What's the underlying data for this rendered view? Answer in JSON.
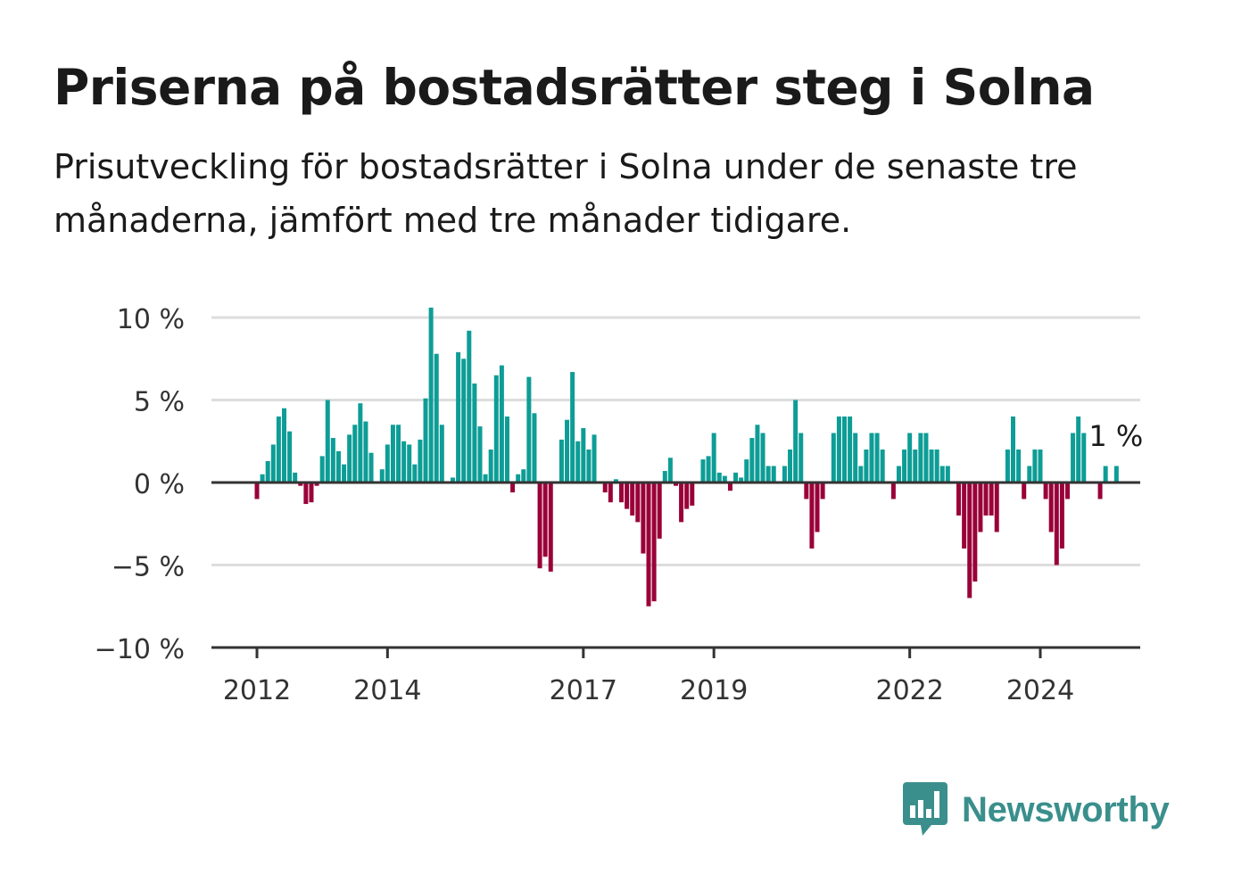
{
  "title": "Priserna på bostadsrätter steg i Solna",
  "subtitle": "Prisutveckling för bostadsrätter i Solna under de senaste tre månaderna, jämfört med tre månader tidigare.",
  "brand": {
    "name": "Newsworthy",
    "icon": "newsworthy-logo-icon",
    "color": "#3a8f8c"
  },
  "colors": {
    "positive": "#0d9d96",
    "negative": "#9a0038",
    "grid": "#dddddd",
    "axis": "#333333"
  },
  "chart_data": {
    "type": "bar",
    "title": "",
    "xlabel": "",
    "ylabel": "",
    "ylim": [
      -10,
      10
    ],
    "yticks": [
      {
        "value": 10,
        "label": "10 %"
      },
      {
        "value": 5,
        "label": "5 %"
      },
      {
        "value": 0,
        "label": "0 %"
      },
      {
        "value": -5,
        "label": "−5 %"
      },
      {
        "value": -10,
        "label": "−10 %"
      }
    ],
    "xticks": [
      "2012",
      "2014",
      "2017",
      "2019",
      "2022",
      "2024"
    ],
    "start": "2012-01",
    "last_label": "1 %",
    "grid": true,
    "values": [
      -1.0,
      0.5,
      1.3,
      2.3,
      4.0,
      4.5,
      3.1,
      0.6,
      -0.2,
      -1.3,
      -1.2,
      -0.2,
      1.6,
      5.0,
      2.7,
      1.9,
      1.1,
      2.9,
      3.5,
      4.8,
      3.7,
      1.8,
      0.0,
      0.8,
      2.3,
      3.5,
      3.5,
      2.5,
      2.3,
      1.1,
      2.6,
      5.1,
      10.6,
      7.8,
      3.5,
      0.0,
      0.3,
      7.9,
      7.5,
      9.2,
      6.0,
      3.4,
      0.5,
      2.0,
      6.5,
      7.1,
      4.0,
      -0.6,
      0.5,
      0.8,
      6.4,
      4.2,
      -5.2,
      -4.5,
      -5.4,
      0.0,
      2.6,
      3.8,
      6.7,
      2.5,
      3.3,
      2.0,
      2.9,
      0.0,
      -0.6,
      -1.2,
      0.2,
      -1.2,
      -1.6,
      -2.0,
      -2.4,
      -4.3,
      -7.5,
      -7.2,
      -3.4,
      0.7,
      1.5,
      -0.2,
      -2.4,
      -1.6,
      -1.4,
      0.0,
      1.4,
      1.6,
      3.0,
      0.6,
      0.4,
      -0.5,
      0.6,
      0.3,
      1.4,
      2.7,
      3.5,
      3.0,
      1.0,
      1.0,
      0.0,
      1.0,
      2.0,
      5.0,
      3.0,
      -1.0,
      -4.0,
      -3.0,
      -1.0,
      0.0,
      3.0,
      4.0,
      4.0,
      4.0,
      3.0,
      1.0,
      2.0,
      3.0,
      3.0,
      2.0,
      0.0,
      -1.0,
      1.0,
      2.0,
      3.0,
      2.0,
      3.0,
      3.0,
      2.0,
      2.0,
      1.0,
      1.0,
      0.0,
      -2.0,
      -4.0,
      -7.0,
      -6.0,
      -3.0,
      -2.0,
      -2.0,
      -3.0,
      0.0,
      2.0,
      4.0,
      2.0,
      -1.0,
      1.0,
      2.0,
      2.0,
      -1.0,
      -3.0,
      -5.0,
      -4.0,
      -1.0,
      3.0,
      4.0,
      3.0,
      0.0,
      0.0,
      -1.0,
      1.0,
      0.0,
      1.0
    ]
  }
}
